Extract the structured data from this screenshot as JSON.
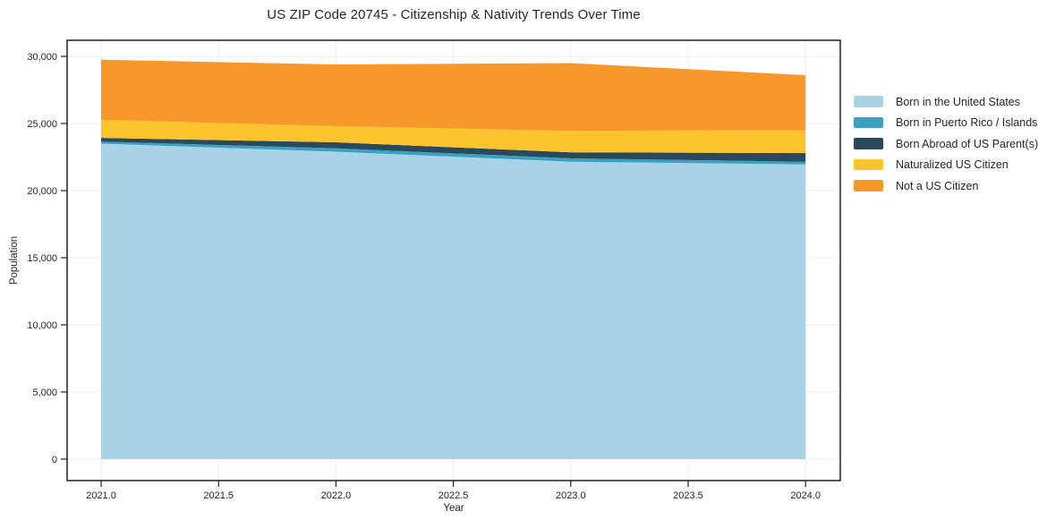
{
  "title": "US ZIP Code 20745 - Citizenship & Nativity Trends Over Time",
  "colors": {
    "background": "#ffffff",
    "grid": "#ededed",
    "spine": "#111111",
    "tick": "#222222",
    "text": "#262626"
  },
  "chart_data": {
    "type": "area",
    "stacked": true,
    "title": "US ZIP Code 20745 - Citizenship & Nativity Trends Over Time",
    "xlabel": "Year",
    "ylabel": "Population",
    "x": [
      2021,
      2022,
      2023,
      2024
    ],
    "series": [
      {
        "name": "Born in the United States",
        "color": "#a8d3e6",
        "values": [
          23500,
          22900,
          22150,
          21950
        ]
      },
      {
        "name": "Born in Puerto Rico / Islands",
        "color": "#39a2c0",
        "values": [
          150,
          250,
          250,
          200
        ]
      },
      {
        "name": "Born Abroad of US Parent(s)",
        "color": "#29495c",
        "values": [
          280,
          450,
          450,
          650
        ]
      },
      {
        "name": "Naturalized US Citizen",
        "color": "#fdc42e",
        "values": [
          1350,
          1200,
          1600,
          1700
        ]
      },
      {
        "name": "Not a US Citizen",
        "color": "#f8982a",
        "values": [
          4470,
          4600,
          5050,
          4100
        ]
      }
    ],
    "totals": [
      29750,
      29400,
      29500,
      28600
    ],
    "x_axis": {
      "label": "Year",
      "min": 2020.855,
      "max": 2024.148,
      "ticks": [
        2021.0,
        2021.5,
        2022.0,
        2022.5,
        2023.0,
        2023.5,
        2024.0
      ],
      "tick_labels": [
        "2021.0",
        "2021.5",
        "2022.0",
        "2022.5",
        "2023.0",
        "2023.5",
        "2024.0"
      ]
    },
    "y_axis": {
      "label": "Population",
      "min": -1600,
      "max": 31200,
      "ticks": [
        0,
        5000,
        10000,
        15000,
        20000,
        25000,
        30000
      ],
      "tick_labels": [
        "0",
        "5,000",
        "10,000",
        "15,000",
        "20,000",
        "25,000",
        "30,000"
      ]
    },
    "grid": true,
    "legend_position": "right"
  }
}
